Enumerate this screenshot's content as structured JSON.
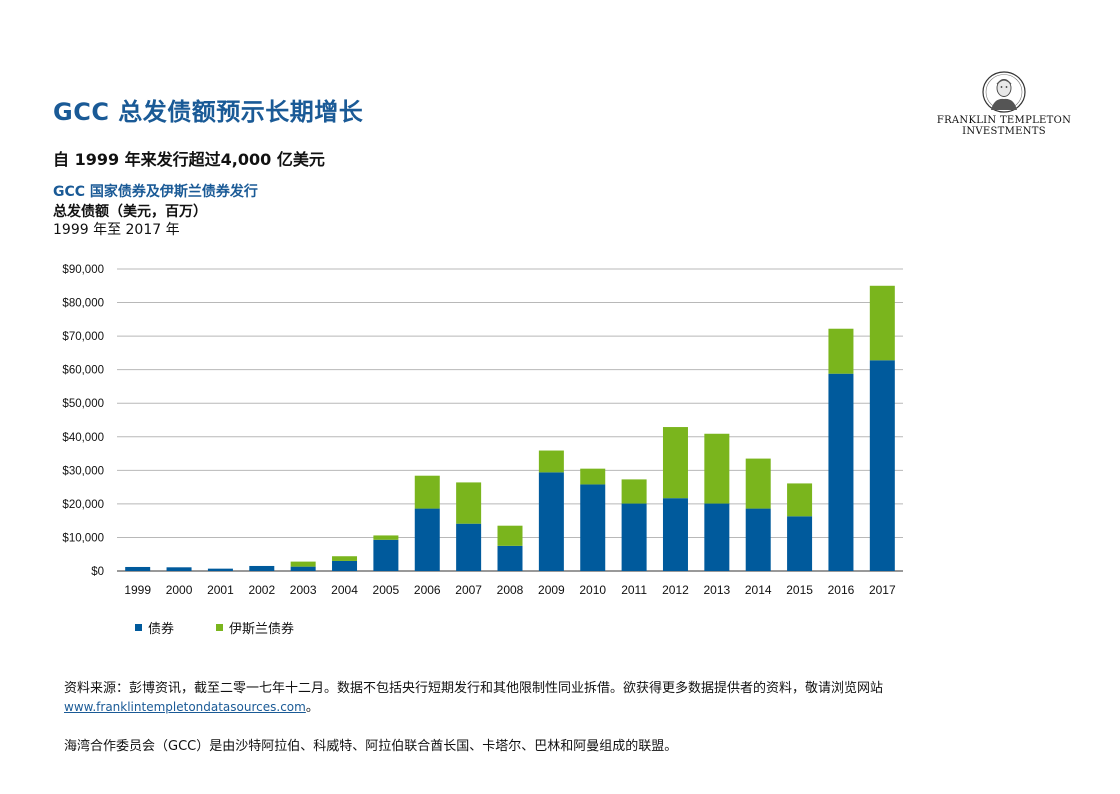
{
  "header": {
    "title": "GCC 总发债额预示长期增长",
    "subtitle": "自 1999 年来发行超过4,000 亿美元",
    "chart_title": "GCC 国家债券及伊斯兰债券发行",
    "ylabel": "总发债额（美元，百万）",
    "period": "1999 年至 2017 年"
  },
  "logo": {
    "line1": "FRANKLIN TEMPLETON",
    "line2": "INVESTMENTS"
  },
  "colors": {
    "bonds": "#005a9c",
    "sukuk": "#7ab51d",
    "title": "#1a5a96",
    "grid": "#b8b8b8"
  },
  "chart_data": {
    "type": "bar",
    "stacked": true,
    "categories": [
      "1999",
      "2000",
      "2001",
      "2002",
      "2003",
      "2004",
      "2005",
      "2006",
      "2007",
      "2008",
      "2009",
      "2010",
      "2011",
      "2012",
      "2013",
      "2014",
      "2015",
      "2016",
      "2017"
    ],
    "series": [
      {
        "name": "债券",
        "values": [
          1200,
          1100,
          700,
          1500,
          1300,
          3000,
          9300,
          18600,
          14100,
          7500,
          29400,
          25800,
          20100,
          21700,
          20100,
          18600,
          16300,
          58800,
          62800
        ]
      },
      {
        "name": "伊斯兰债券",
        "values": [
          0,
          0,
          0,
          0,
          1500,
          1400,
          1300,
          9800,
          12300,
          6000,
          6500,
          4700,
          7200,
          21200,
          20800,
          14900,
          9800,
          13400,
          22200
        ]
      }
    ],
    "yticks": [
      "$0",
      "$10,000",
      "$20,000",
      "$30,000",
      "$40,000",
      "$50,000",
      "$60,000",
      "$70,000",
      "$80,000",
      "$90,000"
    ],
    "ylim": [
      0,
      90000
    ],
    "grid": true,
    "legend_position": "bottom-left"
  },
  "legend": {
    "bonds_label": "债券",
    "sukuk_label": "伊斯兰债券"
  },
  "footnote": {
    "source_text": "资料来源：彭博资讯，截至二零一七年十二月。数据不包括央行短期发行和其他限制性同业拆借。欲获得更多数据提供者的资料，敬请浏览网站",
    "link": "www.franklintempletondatasources.com",
    "period_end": "。",
    "gcc_note": "海湾合作委员会（GCC）是由沙特阿拉伯、科威特、阿拉伯联合酋长国、卡塔尔、巴林和阿曼组成的联盟。"
  }
}
